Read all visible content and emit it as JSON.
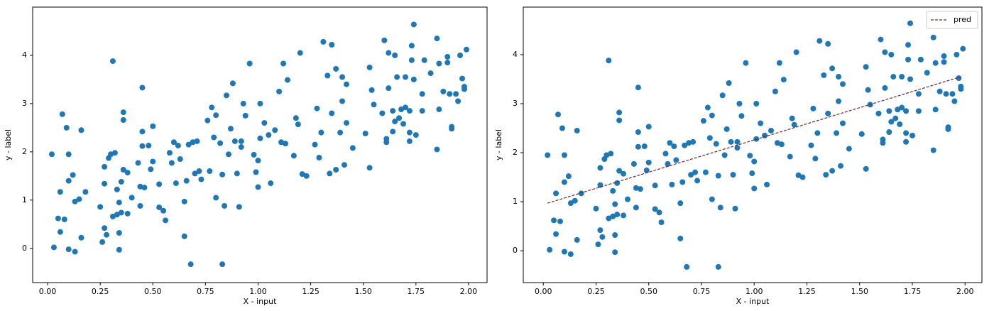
{
  "chart_data": [
    {
      "type": "scatter",
      "xlabel": "X - input",
      "ylabel": "y - label",
      "xlim": [
        -0.071,
        2.088
      ],
      "ylim": [
        -0.71,
        5.0
      ],
      "xticks": [
        {
          "value": 0,
          "label": "0.00"
        },
        {
          "value": 0.25,
          "label": "0.25"
        },
        {
          "value": 0.5,
          "label": "0.50"
        },
        {
          "value": 0.75,
          "label": "0.75"
        },
        {
          "value": 1,
          "label": "1.00"
        },
        {
          "value": 1.25,
          "label": "1.25"
        },
        {
          "value": 1.5,
          "label": "1.50"
        },
        {
          "value": 1.75,
          "label": "1.75"
        },
        {
          "value": 2,
          "label": "2.00"
        }
      ],
      "yticks": [
        0,
        1,
        2,
        3,
        4
      ],
      "series": [
        {
          "type": "scatter",
          "color": "#1f77b4",
          "x": [
            0.02,
            0.03,
            0.05,
            0.06,
            0.06,
            0.07,
            0.08,
            0.09,
            0.1,
            0.1,
            0.1,
            0.12,
            0.13,
            0.13,
            0.15,
            0.16,
            0.16,
            0.18,
            0.25,
            0.26,
            0.27,
            0.27,
            0.27,
            0.28,
            0.29,
            0.3,
            0.31,
            0.31,
            0.32,
            0.33,
            0.33,
            0.34,
            0.34,
            0.34,
            0.35,
            0.35,
            0.36,
            0.36,
            0.36,
            0.38,
            0.38,
            0.4,
            0.43,
            0.44,
            0.44,
            0.45,
            0.45,
            0.45,
            0.46,
            0.48,
            0.49,
            0.5,
            0.5,
            0.53,
            0.53,
            0.55,
            0.56,
            0.58,
            0.59,
            0.6,
            0.61,
            0.62,
            0.63,
            0.65,
            0.65,
            0.66,
            0.67,
            0.68,
            0.69,
            0.7,
            0.71,
            0.72,
            0.73,
            0.76,
            0.77,
            0.78,
            0.79,
            0.8,
            0.8,
            0.82,
            0.83,
            0.83,
            0.84,
            0.85,
            0.86,
            0.87,
            0.88,
            0.89,
            0.9,
            0.91,
            0.92,
            0.92,
            0.93,
            0.94,
            0.96,
            0.98,
            0.99,
            1.0,
            1.0,
            1.01,
            1.01,
            1.03,
            1.05,
            1.06,
            1.08,
            1.1,
            1.11,
            1.12,
            1.13,
            1.14,
            1.17,
            1.18,
            1.19,
            1.2,
            1.21,
            1.23,
            1.27,
            1.28,
            1.29,
            1.3,
            1.31,
            1.33,
            1.34,
            1.35,
            1.35,
            1.37,
            1.37,
            1.39,
            1.4,
            1.4,
            1.41,
            1.42,
            1.42,
            1.45,
            1.51,
            1.53,
            1.53,
            1.54,
            1.55,
            1.59,
            1.6,
            1.61,
            1.61,
            1.62,
            1.62,
            1.64,
            1.64,
            1.65,
            1.65,
            1.66,
            1.67,
            1.68,
            1.69,
            1.7,
            1.7,
            1.72,
            1.72,
            1.72,
            1.73,
            1.73,
            1.74,
            1.74,
            1.75,
            1.78,
            1.78,
            1.79,
            1.82,
            1.85,
            1.85,
            1.86,
            1.86,
            1.88,
            1.9,
            1.9,
            1.91,
            1.92,
            1.92,
            1.94,
            1.95,
            1.96,
            1.97,
            1.98,
            1.98,
            1.99
          ],
          "y": [
            1.95,
            0.02,
            0.62,
            0.34,
            1.17,
            2.78,
            0.6,
            2.5,
            1.95,
            -0.02,
            1.4,
            1.52,
            -0.07,
            0.97,
            1.02,
            2.45,
            0.22,
            1.17,
            0.86,
            0.13,
            0.42,
            1.34,
            1.69,
            0.28,
            1.87,
            1.95,
            3.88,
            0.66,
            1.98,
            0.7,
            1.22,
            -0.03,
            0.32,
            0.95,
            1.38,
            0.74,
            2.82,
            2.66,
            1.63,
            1.57,
            0.72,
            1.05,
            1.77,
            0.88,
            1.28,
            3.33,
            2.42,
            2.12,
            1.26,
            2.13,
            1.64,
            2.53,
            1.8,
            0.85,
            1.33,
            0.78,
            0.58,
            1.98,
            1.77,
            2.2,
            1.35,
            2.13,
            1.85,
            0.25,
            0.97,
            1.4,
            2.15,
            -0.33,
            2.2,
            1.55,
            2.22,
            1.6,
            1.43,
            2.65,
            1.6,
            2.92,
            2.3,
            1.05,
            2.76,
            2.18,
            -0.33,
            1.53,
            0.88,
            3.17,
            1.95,
            2.48,
            3.42,
            2.22,
            1.55,
            0.86,
            2.1,
            2.22,
            3.0,
            2.75,
            3.83,
            1.94,
            1.58,
            1.82,
            1.27,
            2.28,
            3.0,
            2.6,
            2.35,
            1.35,
            2.45,
            3.25,
            2.2,
            3.83,
            2.17,
            3.49,
            1.92,
            2.7,
            2.57,
            4.05,
            1.54,
            1.5,
            2.15,
            2.9,
            1.88,
            2.4,
            4.28,
            3.58,
            1.55,
            4.22,
            2.8,
            3.72,
            1.63,
            2.4,
            3.05,
            3.55,
            1.73,
            3.4,
            2.6,
            2.08,
            2.38,
            3.75,
            1.67,
            3.28,
            2.98,
            2.8,
            4.31,
            2.2,
            2.27,
            4.05,
            3.32,
            2.85,
            2.42,
            4.0,
            2.63,
            3.55,
            2.7,
            2.88,
            2.58,
            2.92,
            3.55,
            2.4,
            2.22,
            2.85,
            3.9,
            4.2,
            3.5,
            4.64,
            2.35,
            3.2,
            2.85,
            3.9,
            3.63,
            4.35,
            2.05,
            3.83,
            2.88,
            3.25,
            3.97,
            3.85,
            3.2,
            2.52,
            2.48,
            3.2,
            3.05,
            4.0,
            3.52,
            3.35,
            3.3,
            4.12
          ]
        }
      ]
    },
    {
      "type": "scatter",
      "xlabel": "X - input",
      "ylabel": "y - label",
      "xlim": [
        -0.095,
        2.08
      ],
      "ylim": [
        -0.65,
        4.97
      ],
      "xticks": [
        {
          "value": 0,
          "label": "0.00"
        },
        {
          "value": 0.25,
          "label": "0.25"
        },
        {
          "value": 0.5,
          "label": "0.50"
        },
        {
          "value": 0.75,
          "label": "0.75"
        },
        {
          "value": 1,
          "label": "1.00"
        },
        {
          "value": 1.25,
          "label": "1.25"
        },
        {
          "value": 1.5,
          "label": "1.50"
        },
        {
          "value": 1.75,
          "label": "1.75"
        },
        {
          "value": 2,
          "label": "2.00"
        }
      ],
      "yticks": [
        0,
        1,
        2,
        3,
        4
      ],
      "legend": "upper right",
      "series": [
        {
          "type": "scatter",
          "color": "#1f77b4",
          "x": [
            0.02,
            0.03,
            0.05,
            0.06,
            0.06,
            0.07,
            0.08,
            0.09,
            0.1,
            0.1,
            0.1,
            0.12,
            0.13,
            0.13,
            0.15,
            0.16,
            0.16,
            0.18,
            0.25,
            0.26,
            0.27,
            0.27,
            0.27,
            0.28,
            0.29,
            0.3,
            0.31,
            0.31,
            0.32,
            0.33,
            0.33,
            0.34,
            0.34,
            0.34,
            0.35,
            0.35,
            0.36,
            0.36,
            0.36,
            0.38,
            0.38,
            0.4,
            0.43,
            0.44,
            0.44,
            0.45,
            0.45,
            0.45,
            0.46,
            0.48,
            0.49,
            0.5,
            0.5,
            0.53,
            0.53,
            0.55,
            0.56,
            0.58,
            0.59,
            0.6,
            0.61,
            0.62,
            0.63,
            0.65,
            0.65,
            0.66,
            0.67,
            0.68,
            0.69,
            0.7,
            0.71,
            0.72,
            0.73,
            0.76,
            0.77,
            0.78,
            0.79,
            0.8,
            0.8,
            0.82,
            0.83,
            0.83,
            0.84,
            0.85,
            0.86,
            0.87,
            0.88,
            0.89,
            0.9,
            0.91,
            0.92,
            0.92,
            0.93,
            0.94,
            0.96,
            0.98,
            0.99,
            1.0,
            1.0,
            1.01,
            1.01,
            1.03,
            1.05,
            1.06,
            1.08,
            1.1,
            1.11,
            1.12,
            1.13,
            1.14,
            1.17,
            1.18,
            1.19,
            1.2,
            1.21,
            1.23,
            1.27,
            1.28,
            1.29,
            1.3,
            1.31,
            1.33,
            1.34,
            1.35,
            1.35,
            1.37,
            1.37,
            1.39,
            1.4,
            1.4,
            1.41,
            1.42,
            1.42,
            1.45,
            1.51,
            1.53,
            1.53,
            1.54,
            1.55,
            1.59,
            1.6,
            1.61,
            1.61,
            1.62,
            1.62,
            1.64,
            1.64,
            1.65,
            1.65,
            1.66,
            1.67,
            1.68,
            1.69,
            1.7,
            1.7,
            1.72,
            1.72,
            1.72,
            1.73,
            1.73,
            1.74,
            1.74,
            1.75,
            1.78,
            1.78,
            1.79,
            1.82,
            1.85,
            1.85,
            1.86,
            1.86,
            1.88,
            1.9,
            1.9,
            1.91,
            1.92,
            1.92,
            1.94,
            1.95,
            1.96,
            1.97,
            1.98,
            1.98,
            1.99
          ],
          "y": [
            1.95,
            0.02,
            0.62,
            0.34,
            1.17,
            2.78,
            0.6,
            2.5,
            1.95,
            -0.02,
            1.4,
            1.52,
            -0.07,
            0.97,
            1.02,
            2.45,
            0.22,
            1.17,
            0.86,
            0.13,
            0.42,
            1.34,
            1.69,
            0.28,
            1.87,
            1.95,
            3.88,
            0.66,
            1.98,
            0.7,
            1.22,
            -0.03,
            0.32,
            0.95,
            1.38,
            0.74,
            2.82,
            2.66,
            1.63,
            1.57,
            0.72,
            1.05,
            1.77,
            0.88,
            1.28,
            3.33,
            2.42,
            2.12,
            1.26,
            2.13,
            1.64,
            2.53,
            1.8,
            0.85,
            1.33,
            0.78,
            0.58,
            1.98,
            1.77,
            2.2,
            1.35,
            2.13,
            1.85,
            0.25,
            0.97,
            1.4,
            2.15,
            -0.33,
            2.2,
            1.55,
            2.22,
            1.6,
            1.43,
            2.65,
            1.6,
            2.92,
            2.3,
            1.05,
            2.76,
            2.18,
            -0.33,
            1.53,
            0.88,
            3.17,
            1.95,
            2.48,
            3.42,
            2.22,
            1.55,
            0.86,
            2.1,
            2.22,
            3.0,
            2.75,
            3.83,
            1.94,
            1.58,
            1.82,
            1.27,
            2.28,
            3.0,
            2.6,
            2.35,
            1.35,
            2.45,
            3.25,
            2.2,
            3.83,
            2.17,
            3.49,
            1.92,
            2.7,
            2.57,
            4.05,
            1.54,
            1.5,
            2.15,
            2.9,
            1.88,
            2.4,
            4.28,
            3.58,
            1.55,
            4.22,
            2.8,
            3.72,
            1.63,
            2.4,
            3.05,
            3.55,
            1.73,
            3.4,
            2.6,
            2.08,
            2.38,
            3.75,
            1.67,
            3.28,
            2.98,
            2.8,
            4.31,
            2.2,
            2.27,
            4.05,
            3.32,
            2.85,
            2.42,
            4.0,
            2.63,
            3.55,
            2.7,
            2.88,
            2.58,
            2.92,
            3.55,
            2.4,
            2.22,
            2.85,
            3.9,
            4.2,
            3.5,
            4.64,
            2.35,
            3.2,
            2.85,
            3.9,
            3.63,
            4.35,
            2.05,
            3.83,
            2.88,
            3.25,
            3.97,
            3.85,
            3.2,
            2.52,
            2.48,
            3.2,
            3.05,
            4.0,
            3.52,
            3.35,
            3.3,
            4.12
          ]
        },
        {
          "type": "line",
          "name": "pred",
          "color": "#6b2a2a",
          "dashed": true,
          "x": [
            0.02,
            1.98
          ],
          "y": [
            0.97,
            3.55
          ]
        }
      ]
    }
  ]
}
